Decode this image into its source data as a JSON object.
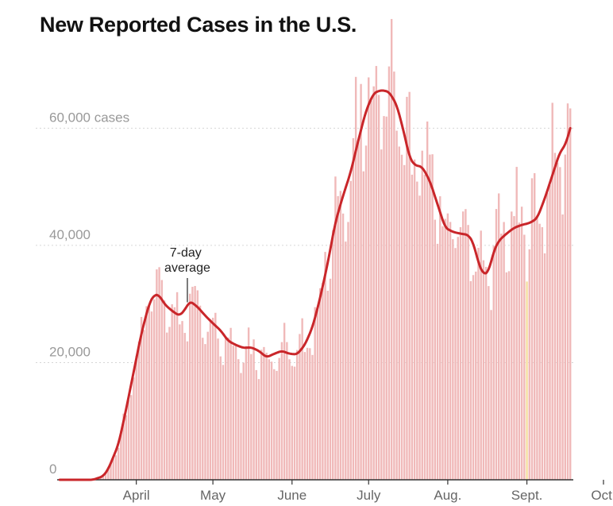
{
  "chart_data": {
    "type": "bar",
    "title": "New Reported Cases in the U.S.",
    "ylim": [
      0,
      75000
    ],
    "y_ticks": [
      {
        "value": 0,
        "label": "0"
      },
      {
        "value": 20000,
        "label": "20,000"
      },
      {
        "value": 40000,
        "label": "40,000"
      },
      {
        "value": 60000,
        "label": "60,000 cases"
      }
    ],
    "x_ticks": [
      {
        "day": 31,
        "label": "April"
      },
      {
        "day": 61,
        "label": "May"
      },
      {
        "day": 92,
        "label": "June"
      },
      {
        "day": 122,
        "label": "July"
      },
      {
        "day": 153,
        "label": "Aug."
      },
      {
        "day": 184,
        "label": "Sept."
      },
      {
        "day": 214,
        "label": "Oct."
      }
    ],
    "average_anchors": [
      [
        1,
        0
      ],
      [
        14,
        0
      ],
      [
        18,
        600
      ],
      [
        20,
        1800
      ],
      [
        24,
        6000
      ],
      [
        27,
        12000
      ],
      [
        30,
        18500
      ],
      [
        33,
        25000
      ],
      [
        36,
        30000
      ],
      [
        38,
        31600
      ],
      [
        40,
        31500
      ],
      [
        42,
        30000
      ],
      [
        44,
        29200
      ],
      [
        46,
        28500
      ],
      [
        48,
        28000
      ],
      [
        50,
        29000
      ],
      [
        52,
        30500
      ],
      [
        55,
        29500
      ],
      [
        58,
        28000
      ],
      [
        61,
        26700
      ],
      [
        64,
        25500
      ],
      [
        67,
        23700
      ],
      [
        70,
        23000
      ],
      [
        73,
        22500
      ],
      [
        76,
        22600
      ],
      [
        79,
        22000
      ],
      [
        82,
        20900
      ],
      [
        85,
        21500
      ],
      [
        88,
        22000
      ],
      [
        91,
        21500
      ],
      [
        94,
        21400
      ],
      [
        97,
        23000
      ],
      [
        100,
        26000
      ],
      [
        103,
        31000
      ],
      [
        106,
        37000
      ],
      [
        109,
        44000
      ],
      [
        112,
        48500
      ],
      [
        115,
        52500
      ],
      [
        118,
        58000
      ],
      [
        121,
        63000
      ],
      [
        124,
        66000
      ],
      [
        127,
        66500
      ],
      [
        130,
        66200
      ],
      [
        133,
        64000
      ],
      [
        136,
        59000
      ],
      [
        138,
        55000
      ],
      [
        140,
        53700
      ],
      [
        143,
        53400
      ],
      [
        146,
        51000
      ],
      [
        149,
        47000
      ],
      [
        152,
        43000
      ],
      [
        155,
        42300
      ],
      [
        158,
        42000
      ],
      [
        161,
        41800
      ],
      [
        163,
        40500
      ],
      [
        165,
        37000
      ],
      [
        167,
        35000
      ],
      [
        169,
        35500
      ],
      [
        171,
        39000
      ],
      [
        173,
        40800
      ],
      [
        176,
        42000
      ],
      [
        179,
        43000
      ],
      [
        182,
        43500
      ],
      [
        185,
        43800
      ],
      [
        188,
        44600
      ],
      [
        191,
        48000
      ],
      [
        194,
        52000
      ],
      [
        197,
        56000
      ],
      [
        199,
        57000
      ],
      [
        201,
        60000
      ]
    ],
    "annotation": {
      "text_lines": [
        "7-day",
        "average"
      ],
      "day": 51
    },
    "highlight_day": 184,
    "colors": {
      "bar": "#f0b9b9",
      "bar_highlight": "#f5dfa0",
      "line": "#c9262a",
      "grid": "#d6d6d6",
      "axis": "#333333"
    }
  }
}
